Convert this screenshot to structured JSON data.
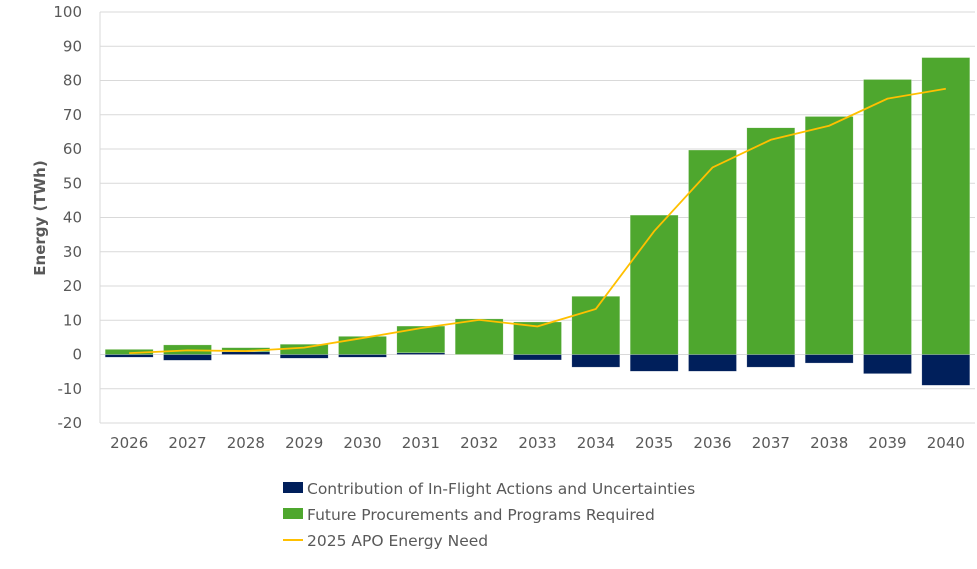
{
  "chart_data": {
    "type": "bar",
    "stacked": true,
    "title": "",
    "xlabel": "",
    "ylabel": "Energy (TWh)",
    "ylim": [
      -20,
      100
    ],
    "yticks": [
      -20,
      -10,
      0,
      10,
      20,
      30,
      40,
      50,
      60,
      70,
      80,
      90,
      100
    ],
    "grid": true,
    "legend_position": "bottom",
    "categories": [
      "2026",
      "2027",
      "2028",
      "2029",
      "2030",
      "2031",
      "2032",
      "2033",
      "2034",
      "2035",
      "2036",
      "2037",
      "2038",
      "2039",
      "2040"
    ],
    "series": [
      {
        "name": "Contribution of In-Flight Actions and Uncertainties",
        "kind": "bar",
        "color": "#001f5b",
        "values": [
          -0.8,
          -1.7,
          0.8,
          -1.1,
          -0.8,
          0.5,
          0,
          -1.6,
          -3.7,
          -4.9,
          -4.9,
          -3.7,
          -2.5,
          -5.6,
          -9.0
        ]
      },
      {
        "name": "Future Procurements and Programs Required",
        "kind": "bar",
        "color": "#4ea72e",
        "values": [
          1.5,
          2.8,
          1.2,
          3.0,
          5.3,
          7.8,
          10.4,
          9.5,
          17.0,
          40.7,
          59.7,
          66.2,
          69.5,
          80.3,
          86.7
        ]
      },
      {
        "name": "2025 APO Energy Need",
        "kind": "line",
        "color": "#ffc000",
        "values": [
          0.4,
          1.2,
          1.0,
          2.0,
          4.8,
          7.7,
          10.1,
          8.2,
          13.3,
          36.0,
          54.6,
          62.7,
          66.8,
          74.7,
          77.6
        ]
      }
    ]
  }
}
